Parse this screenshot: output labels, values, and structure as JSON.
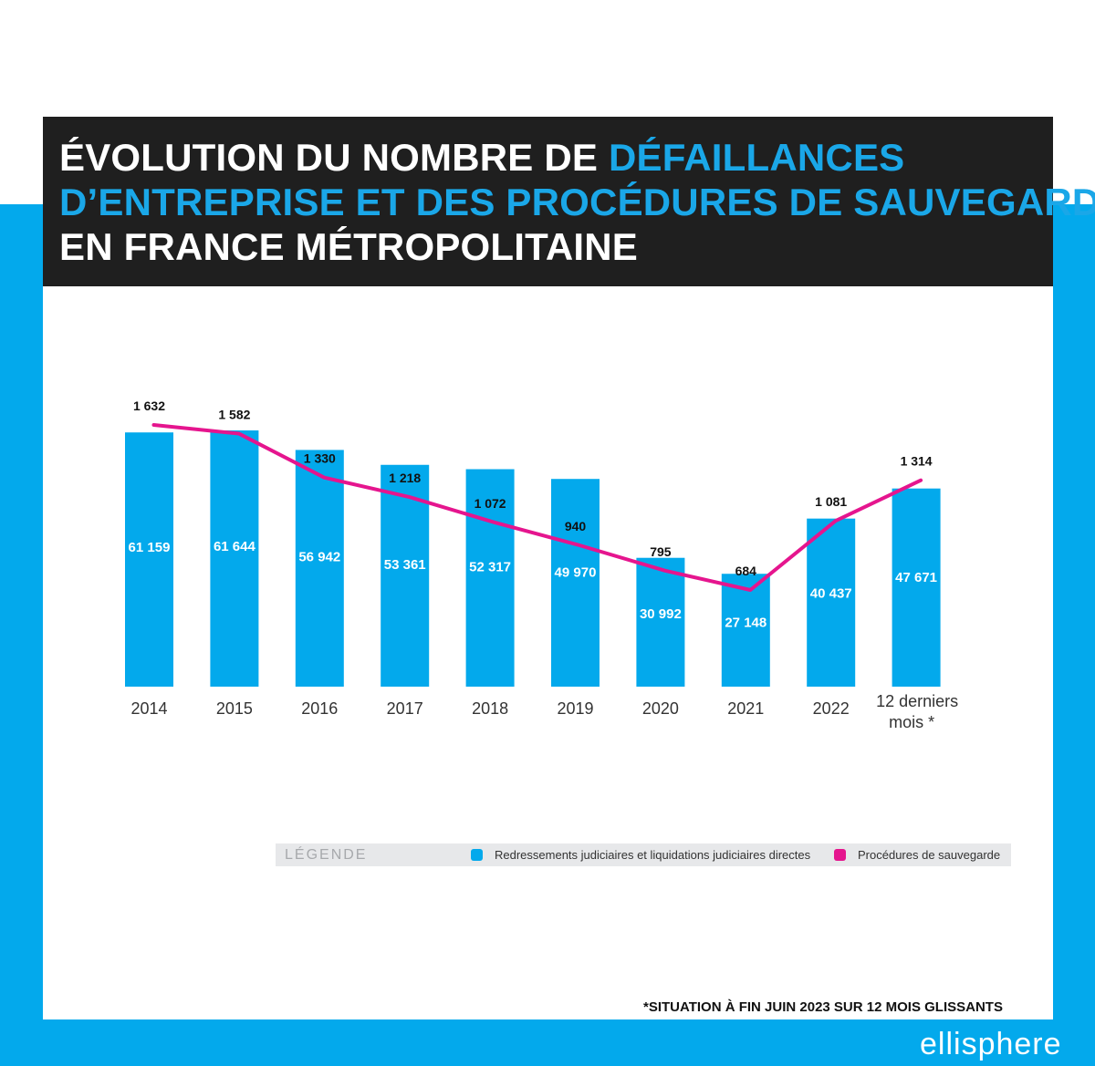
{
  "title": {
    "line1_plain": "ÉVOLUTION DU NOMBRE DE ",
    "line1_highlight": "DÉFAILLANCES",
    "line2_highlight": "D’ENTREPRISE ET DES PROCÉDURES DE SAUVEGARDE",
    "line3_plain": "EN FRANCE MÉTROPOLITAINE"
  },
  "colors": {
    "band": "#03a9ec",
    "bar": "#03a9ec",
    "line": "#e5158e",
    "title_bg": "#1f1f1f",
    "title_highlight": "#1aa7e8"
  },
  "chart_data": {
    "type": "bar",
    "categories": [
      "2014",
      "2015",
      "2016",
      "2017",
      "2018",
      "2019",
      "2020",
      "2021",
      "2022",
      "12 derniers mois *"
    ],
    "series": [
      {
        "name": "Redressements judiciaires et liquidations judiciaires directes",
        "type": "bar",
        "values": [
          61159,
          61644,
          56942,
          53361,
          52317,
          49970,
          30992,
          27148,
          40437,
          47671
        ],
        "labels": [
          "61 159",
          "61 644",
          "56 942",
          "53 361",
          "52 317",
          "49 970",
          "30 992",
          "27 148",
          "40 437",
          "47 671"
        ]
      },
      {
        "name": "Procédures de sauvegarde",
        "type": "line",
        "values": [
          1632,
          1582,
          1330,
          1218,
          1072,
          940,
          795,
          684,
          1081,
          1314
        ],
        "labels": [
          "1 632",
          "1 582",
          "1 330",
          "1 218",
          "1 072",
          "940",
          "795",
          "684",
          "1 081",
          "1 314"
        ]
      }
    ],
    "legend": {
      "title": "LÉGENDE",
      "position": "bottom"
    },
    "grid": false
  },
  "footnote": "*SITUATION À FIN JUIN 2023 SUR 12 MOIS GLISSANTS",
  "brand": "ellisphere"
}
